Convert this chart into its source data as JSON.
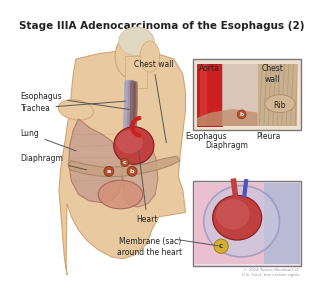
{
  "title": "Stage IIIA Adenocarcinoma of the Esophagus (2)",
  "title_fontsize": 7.5,
  "bg_color": "#ffffff",
  "labels": {
    "esophagus": "Esophagus",
    "trachea": "Trachea",
    "lung": "Lung",
    "diaphragm": "Diaphragm",
    "chest_wall": "Chest wall",
    "aorta": "Aorta",
    "chest_wall2": "Chest\nwall",
    "rib": "Rib",
    "pleura": "Pleura",
    "esophagus2": "Esophagus",
    "diaphragm2": "Diaphragm",
    "heart": "Heart",
    "membrane": "Membrane (sac)\naround the heart",
    "b_label": "b",
    "c_label": "c",
    "a_label": "a",
    "copyright": "© 2014 Terese Winslow LLC\nU.S. Govt. has certain rights"
  },
  "colors": {
    "skin": "#e8c9a0",
    "skin_dark": "#d4a574",
    "lung_pink": "#c9a090",
    "lung_inner": "#b07060",
    "heart_red": "#c04040",
    "heart_pink": "#d06060",
    "esophagus_tube": "#8a6060",
    "trachea_tube": "#a0a0c0",
    "aorta_red": "#cc2020",
    "diaphragm_color": "#c8a080",
    "rib_color": "#d4b896",
    "pleura_pink": "#e8b0b0",
    "chest_wall_color": "#c0a080",
    "stomach_color": "#d4907a",
    "inset_bg1": "#f0e0d0",
    "inset_bg2": "#f0d8e0",
    "membrane_yellow": "#d4b840",
    "cancer_color": "#c06040",
    "line_color": "#555555",
    "text_color": "#222222",
    "border_color": "#888888",
    "bg_color": "#ffffff"
  }
}
